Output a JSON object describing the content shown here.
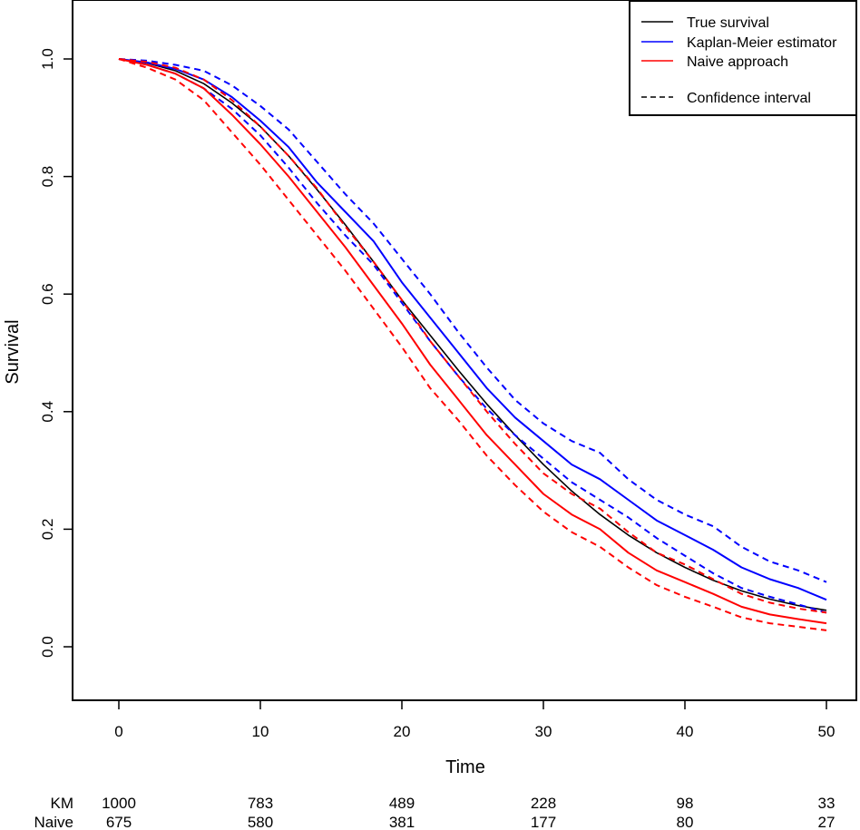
{
  "chart_data": {
    "type": "line",
    "title": "",
    "xlabel": "Time",
    "ylabel": "Survival",
    "xlim": [
      -3,
      52
    ],
    "ylim": [
      -0.09,
      1.09
    ],
    "xticks": [
      0,
      10,
      20,
      30,
      40,
      50
    ],
    "xtick_labels": [
      "0",
      "10",
      "20",
      "30",
      "40",
      "50"
    ],
    "yticks": [
      0.0,
      0.2,
      0.4,
      0.6,
      0.8,
      1.0
    ],
    "ytick_labels": [
      "0.0",
      "0.2",
      "0.4",
      "0.6",
      "0.8",
      "1.0"
    ],
    "grid": false,
    "legend_position": "top-right",
    "legend": [
      {
        "label": "True survival",
        "color": "#000000",
        "dash": "solid"
      },
      {
        "label": "Kaplan-Meier estimator",
        "color": "#0000ff",
        "dash": "solid"
      },
      {
        "label": "Naive approach",
        "color": "#ff0000",
        "dash": "solid"
      },
      {
        "label": "Confidence interval",
        "color": "#000000",
        "dash": "dashed"
      }
    ],
    "x": [
      0,
      2,
      4,
      6,
      8,
      10,
      12,
      14,
      16,
      18,
      20,
      22,
      24,
      26,
      28,
      30,
      32,
      34,
      36,
      38,
      40,
      42,
      44,
      46,
      48,
      50
    ],
    "series": [
      {
        "name": "True survival",
        "color": "#000000",
        "dash": "solid",
        "values": [
          1.0,
          0.993,
          0.98,
          0.958,
          0.925,
          0.885,
          0.835,
          0.778,
          0.718,
          0.655,
          0.59,
          0.53,
          0.47,
          0.413,
          0.36,
          0.31,
          0.265,
          0.225,
          0.19,
          0.16,
          0.135,
          0.113,
          0.095,
          0.081,
          0.07,
          0.062
        ]
      },
      {
        "name": "Kaplan-Meier estimator",
        "color": "#0000ff",
        "dash": "solid",
        "values": [
          1.0,
          0.994,
          0.983,
          0.965,
          0.935,
          0.895,
          0.85,
          0.79,
          0.74,
          0.69,
          0.62,
          0.56,
          0.5,
          0.44,
          0.39,
          0.35,
          0.31,
          0.285,
          0.25,
          0.215,
          0.19,
          0.165,
          0.135,
          0.115,
          0.1,
          0.08
        ]
      },
      {
        "name": "Kaplan-Meier CI upper",
        "color": "#0000ff",
        "dash": "dashed",
        "values": [
          1.0,
          0.997,
          0.99,
          0.98,
          0.955,
          0.92,
          0.88,
          0.825,
          0.77,
          0.72,
          0.66,
          0.6,
          0.535,
          0.475,
          0.42,
          0.38,
          0.35,
          0.33,
          0.285,
          0.25,
          0.225,
          0.205,
          0.17,
          0.145,
          0.13,
          0.11
        ]
      },
      {
        "name": "Kaplan-Meier CI lower",
        "color": "#0000ff",
        "dash": "dashed",
        "values": [
          1.0,
          0.99,
          0.975,
          0.95,
          0.915,
          0.87,
          0.815,
          0.755,
          0.7,
          0.65,
          0.585,
          0.52,
          0.46,
          0.405,
          0.36,
          0.32,
          0.28,
          0.25,
          0.22,
          0.185,
          0.155,
          0.125,
          0.1,
          0.085,
          0.072,
          0.058
        ]
      },
      {
        "name": "Naive approach",
        "color": "#ff0000",
        "dash": "solid",
        "values": [
          1.0,
          0.99,
          0.975,
          0.95,
          0.905,
          0.855,
          0.8,
          0.74,
          0.68,
          0.615,
          0.55,
          0.48,
          0.42,
          0.36,
          0.31,
          0.26,
          0.225,
          0.2,
          0.16,
          0.13,
          0.11,
          0.09,
          0.068,
          0.055,
          0.047,
          0.04
        ]
      },
      {
        "name": "Naive CI upper",
        "color": "#ff0000",
        "dash": "dashed",
        "values": [
          1.0,
          0.995,
          0.985,
          0.965,
          0.93,
          0.885,
          0.835,
          0.78,
          0.715,
          0.655,
          0.59,
          0.52,
          0.46,
          0.4,
          0.345,
          0.295,
          0.26,
          0.235,
          0.195,
          0.16,
          0.14,
          0.115,
          0.09,
          0.075,
          0.065,
          0.058
        ]
      },
      {
        "name": "Naive CI lower",
        "color": "#ff0000",
        "dash": "dashed",
        "values": [
          1.0,
          0.985,
          0.965,
          0.93,
          0.875,
          0.82,
          0.76,
          0.7,
          0.64,
          0.575,
          0.51,
          0.44,
          0.385,
          0.325,
          0.275,
          0.23,
          0.195,
          0.17,
          0.135,
          0.105,
          0.085,
          0.068,
          0.05,
          0.04,
          0.034,
          0.028
        ]
      }
    ],
    "risk_table": {
      "times": [
        0,
        10,
        20,
        30,
        40,
        50
      ],
      "rows": [
        {
          "label": "KM",
          "values": [
            "1000",
            "783",
            "489",
            "228",
            "98",
            "33"
          ]
        },
        {
          "label": "Naive",
          "values": [
            "675",
            "580",
            "381",
            "177",
            "80",
            "27"
          ]
        }
      ]
    }
  }
}
